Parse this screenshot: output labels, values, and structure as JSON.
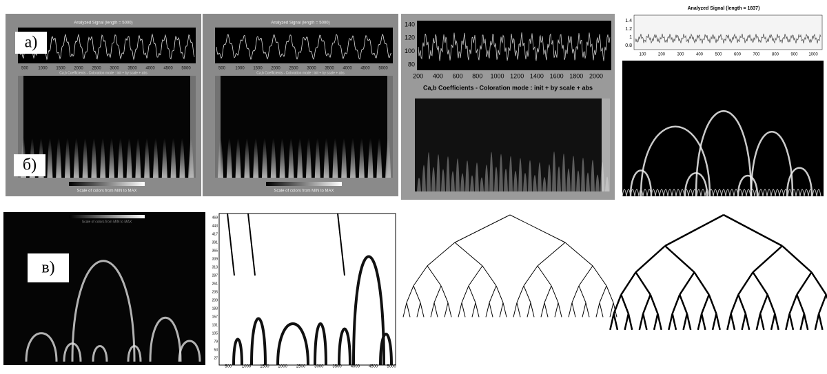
{
  "labels": [
    "а)",
    "б)",
    "в)"
  ],
  "panels": [
    {
      "title": "Analyzed Signal (length = 5000)",
      "xticks": [
        "500",
        "1000",
        "1500",
        "2000",
        "2500",
        "3000",
        "3500",
        "4000",
        "4500",
        "5000"
      ],
      "subtitle": "Ca,b Coefficients - Coloration mode : init + by scale + abs",
      "scale_note": "Scale of colors from MIN to MAX"
    },
    {
      "title": "Analyzed Signal (length = 5000)",
      "xticks": [
        "500",
        "1000",
        "1500",
        "2000",
        "2500",
        "3000",
        "3500",
        "4000",
        "4500",
        "5000"
      ],
      "subtitle": "Ca,b Coefficients - Coloration mode : init + by scale + abs",
      "scale_note": "Scale of colors from MIN to MAX"
    },
    {
      "yticks": [
        "80",
        "100",
        "120",
        "140"
      ],
      "xticks": [
        "200",
        "400",
        "600",
        "800",
        "1000",
        "1200",
        "1400",
        "1600",
        "1800",
        "2000"
      ],
      "subtitle": "Ca,b Coefficients - Coloration mode : init + by scale + abs"
    },
    {
      "title": "Analyzed Signal (length = 1837)",
      "yticks": [
        "0.8",
        "1",
        "1.2",
        "1.4"
      ],
      "xticks": [
        "100",
        "200",
        "300",
        "400",
        "500",
        "600",
        "700",
        "800",
        "900",
        "1000"
      ]
    },
    {
      "scale_note": "Scale of colors from MIN to MAX"
    },
    {
      "yticks": [
        "27",
        "53",
        "79",
        "105",
        "131",
        "157",
        "183",
        "209",
        "235",
        "261",
        "287",
        "313",
        "339",
        "365",
        "391",
        "417",
        "443",
        "469"
      ],
      "xticks": [
        "500",
        "1000",
        "1500",
        "2000",
        "2500",
        "3000",
        "3500",
        "4000",
        "4500",
        "5000"
      ]
    }
  ]
}
